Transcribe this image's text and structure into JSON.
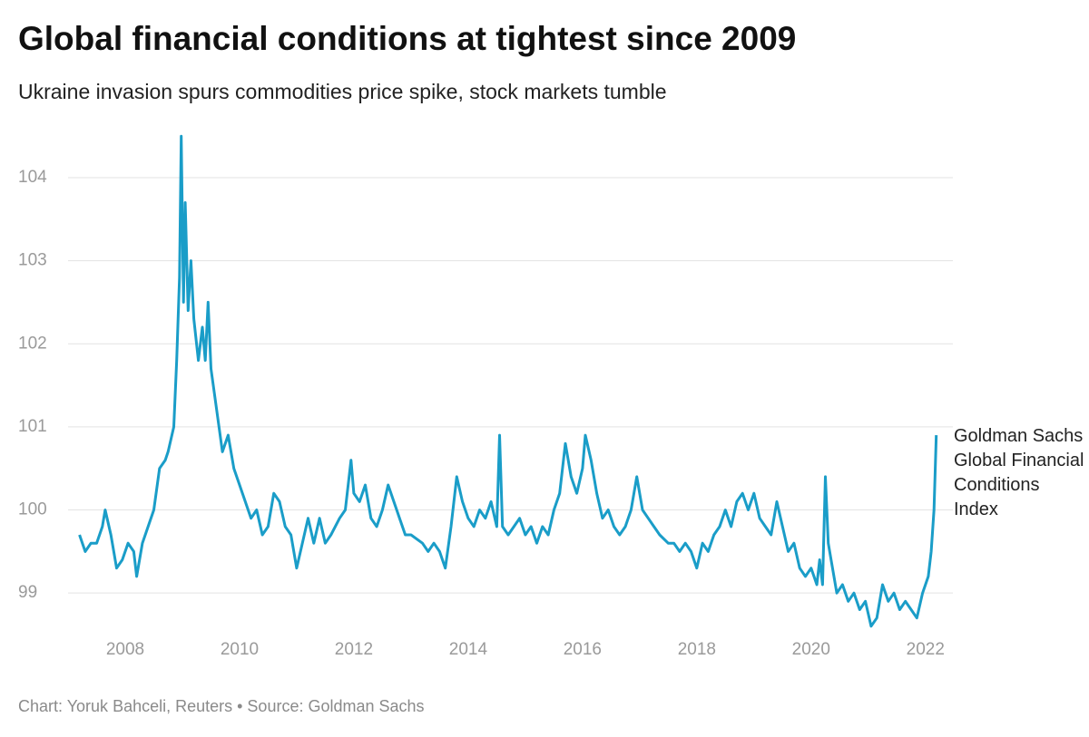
{
  "chart_data": {
    "type": "line",
    "title": "Global financial conditions at tightest since 2009",
    "subtitle": "Ukraine invasion spurs commodities price spike, stock markets tumble",
    "footer": "Chart: Yoruk Bahceli, Reuters • Source: Goldman Sachs",
    "x": [
      2007.2,
      2007.3,
      2007.4,
      2007.5,
      2007.6,
      2007.65,
      2007.75,
      2007.85,
      2007.95,
      2008.05,
      2008.15,
      2008.2,
      2008.3,
      2008.4,
      2008.5,
      2008.6,
      2008.7,
      2008.75,
      2008.85,
      2008.9,
      2008.95,
      2008.98,
      2009.02,
      2009.05,
      2009.1,
      2009.15,
      2009.2,
      2009.28,
      2009.35,
      2009.4,
      2009.45,
      2009.5,
      2009.6,
      2009.7,
      2009.8,
      2009.9,
      2010.0,
      2010.1,
      2010.2,
      2010.3,
      2010.4,
      2010.5,
      2010.6,
      2010.7,
      2010.8,
      2010.9,
      2011.0,
      2011.1,
      2011.2,
      2011.3,
      2011.4,
      2011.5,
      2011.6,
      2011.75,
      2011.85,
      2011.95,
      2012.0,
      2012.1,
      2012.2,
      2012.3,
      2012.4,
      2012.5,
      2012.6,
      2012.7,
      2012.8,
      2012.9,
      2013.0,
      2013.2,
      2013.3,
      2013.4,
      2013.5,
      2013.6,
      2013.7,
      2013.8,
      2013.9,
      2014.0,
      2014.1,
      2014.2,
      2014.3,
      2014.4,
      2014.5,
      2014.55,
      2014.6,
      2014.7,
      2014.8,
      2014.9,
      2015.0,
      2015.1,
      2015.2,
      2015.3,
      2015.4,
      2015.5,
      2015.6,
      2015.7,
      2015.8,
      2015.9,
      2016.0,
      2016.05,
      2016.15,
      2016.25,
      2016.35,
      2016.45,
      2016.55,
      2016.65,
      2016.75,
      2016.85,
      2016.95,
      2017.05,
      2017.15,
      2017.25,
      2017.35,
      2017.5,
      2017.6,
      2017.7,
      2017.8,
      2017.9,
      2018.0,
      2018.1,
      2018.2,
      2018.3,
      2018.4,
      2018.5,
      2018.6,
      2018.7,
      2018.8,
      2018.9,
      2019.0,
      2019.1,
      2019.2,
      2019.3,
      2019.4,
      2019.5,
      2019.6,
      2019.7,
      2019.8,
      2019.9,
      2020.0,
      2020.1,
      2020.15,
      2020.2,
      2020.25,
      2020.3,
      2020.35,
      2020.45,
      2020.55,
      2020.65,
      2020.75,
      2020.85,
      2020.95,
      2021.05,
      2021.15,
      2021.25,
      2021.35,
      2021.45,
      2021.55,
      2021.65,
      2021.75,
      2021.85,
      2021.95,
      2022.05,
      2022.1,
      2022.15,
      2022.19
    ],
    "series": [
      {
        "name": "Goldman Sachs Global Financial Conditions Index",
        "color": "#1a9dc8",
        "values": [
          99.7,
          99.5,
          99.6,
          99.6,
          99.8,
          100.0,
          99.7,
          99.3,
          99.4,
          99.6,
          99.5,
          99.2,
          99.6,
          99.8,
          100.0,
          100.5,
          100.6,
          100.7,
          101.0,
          101.8,
          102.8,
          104.5,
          102.5,
          103.7,
          102.4,
          103.0,
          102.3,
          101.8,
          102.2,
          101.8,
          102.5,
          101.7,
          101.2,
          100.7,
          100.9,
          100.5,
          100.3,
          100.1,
          99.9,
          100.0,
          99.7,
          99.8,
          100.2,
          100.1,
          99.8,
          99.7,
          99.3,
          99.6,
          99.9,
          99.6,
          99.9,
          99.6,
          99.7,
          99.9,
          100.0,
          100.6,
          100.2,
          100.1,
          100.3,
          99.9,
          99.8,
          100.0,
          100.3,
          100.1,
          99.9,
          99.7,
          99.7,
          99.6,
          99.5,
          99.6,
          99.5,
          99.3,
          99.8,
          100.4,
          100.1,
          99.9,
          99.8,
          100.0,
          99.9,
          100.1,
          99.8,
          100.9,
          99.8,
          99.7,
          99.8,
          99.9,
          99.7,
          99.8,
          99.6,
          99.8,
          99.7,
          100.0,
          100.2,
          100.8,
          100.4,
          100.2,
          100.5,
          100.9,
          100.6,
          100.2,
          99.9,
          100.0,
          99.8,
          99.7,
          99.8,
          100.0,
          100.4,
          100.0,
          99.9,
          99.8,
          99.7,
          99.6,
          99.6,
          99.5,
          99.6,
          99.5,
          99.3,
          99.6,
          99.5,
          99.7,
          99.8,
          100.0,
          99.8,
          100.1,
          100.2,
          100.0,
          100.2,
          99.9,
          99.8,
          99.7,
          100.1,
          99.8,
          99.5,
          99.6,
          99.3,
          99.2,
          99.3,
          99.1,
          99.4,
          99.1,
          100.4,
          99.6,
          99.4,
          99.0,
          99.1,
          98.9,
          99.0,
          98.8,
          98.9,
          98.6,
          98.7,
          99.1,
          98.9,
          99.0,
          98.8,
          98.9,
          98.8,
          98.7,
          99.0,
          99.2,
          99.5,
          100.0,
          100.9
        ]
      }
    ],
    "xlim": [
      2007.0,
      2022.48
    ],
    "xticks": [
      2008,
      2010,
      2012,
      2014,
      2016,
      2018,
      2020,
      2022
    ],
    "ylim": [
      98.5,
      104.6
    ],
    "yticks": [
      99,
      100,
      101,
      102,
      103,
      104
    ],
    "grid": true
  }
}
